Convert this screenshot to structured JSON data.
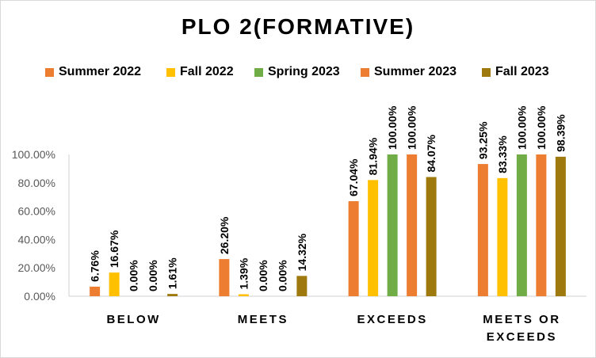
{
  "chart_data": {
    "type": "bar",
    "title": "PLO 2(FORMATIVE)",
    "xlabel": "",
    "ylabel": "",
    "ylim": [
      0,
      100
    ],
    "yticks": [
      "0.00%",
      "20.00%",
      "40.00%",
      "60.00%",
      "80.00%",
      "100.00%"
    ],
    "legend_position": "top",
    "grid": false,
    "categories": [
      [
        "BELOW"
      ],
      [
        "MEETS"
      ],
      [
        "EXCEEDS"
      ],
      [
        "MEETS OR",
        "EXCEEDS"
      ]
    ],
    "series": [
      {
        "name": "Summer 2022",
        "color": "#ED7D31",
        "values": [
          6.76,
          26.2,
          67.04,
          93.25
        ],
        "labels": [
          "6.76%",
          "26.20%",
          "67.04%",
          "93.25%"
        ]
      },
      {
        "name": "Fall 2022",
        "color": "#FFC000",
        "values": [
          16.67,
          1.39,
          81.94,
          83.33
        ],
        "labels": [
          "16.67%",
          "1.39%",
          "81.94%",
          "83.33%"
        ]
      },
      {
        "name": "Spring 2023",
        "color": "#70AD47",
        "values": [
          0.0,
          0.0,
          100.0,
          100.0
        ],
        "labels": [
          "0.00%",
          "0.00%",
          "100.00%",
          "100.00%"
        ]
      },
      {
        "name": "Summer 2023",
        "color": "#ED7D31",
        "values": [
          0.0,
          0.0,
          100.0,
          100.0
        ],
        "labels": [
          "0.00%",
          "0.00%",
          "100.00%",
          "100.00%"
        ]
      },
      {
        "name": "Fall 2023",
        "color": "#9E7A0E",
        "values": [
          1.61,
          14.32,
          84.07,
          98.39
        ],
        "labels": [
          "1.61%",
          "14.32%",
          "84.07%",
          "98.39%"
        ]
      }
    ]
  }
}
